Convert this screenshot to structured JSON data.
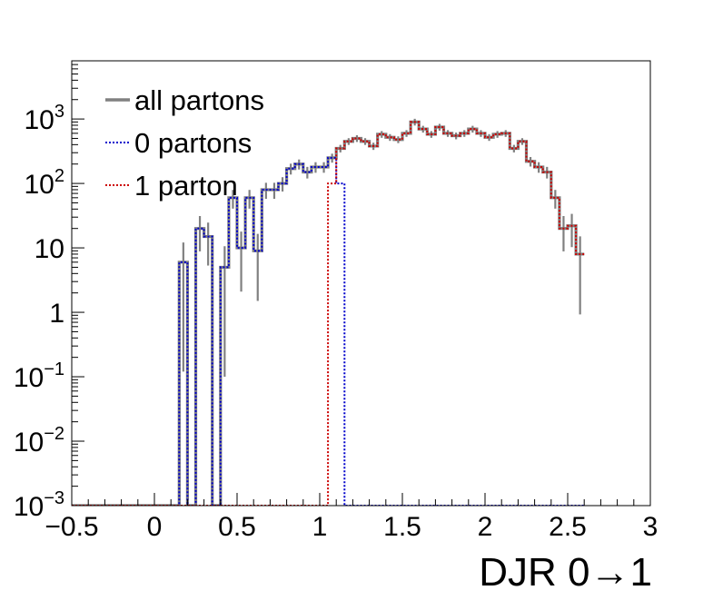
{
  "chart_data": {
    "type": "histogram",
    "xlabel": "DJR 0→1",
    "ylabel": "",
    "xlim": [
      -0.5,
      3
    ],
    "ylim": [
      0.001,
      8000
    ],
    "yscale": "log",
    "grid": false,
    "legend_position": "top-left",
    "x_ticks": [
      "−0.5",
      "0",
      "0.5",
      "1",
      "1.5",
      "2",
      "2.5",
      "3"
    ],
    "y_ticks": [
      {
        "value": 0.001,
        "base": "10",
        "exp": "−3"
      },
      {
        "value": 0.01,
        "base": "10",
        "exp": "−2"
      },
      {
        "value": 0.1,
        "base": "10",
        "exp": "−1"
      },
      {
        "value": 1,
        "base": "1",
        "exp": ""
      },
      {
        "value": 10,
        "base": "10",
        "exp": ""
      },
      {
        "value": 100,
        "base": "10",
        "exp": "2"
      },
      {
        "value": 1000,
        "base": "10",
        "exp": "3"
      }
    ],
    "bin_start": -0.5,
    "bin_width": 0.05,
    "series": [
      {
        "name": "all partons",
        "color": "#808080",
        "style": "solid",
        "values": [
          0,
          0,
          0,
          0,
          0,
          0,
          0,
          0,
          0,
          0,
          0,
          0,
          0,
          6,
          0,
          20,
          15,
          0,
          5,
          60,
          10,
          60,
          9,
          80,
          80,
          100,
          170,
          200,
          150,
          180,
          180,
          250,
          350,
          450,
          500,
          450,
          380,
          580,
          520,
          480,
          600,
          900,
          700,
          580,
          750,
          600,
          550,
          600,
          700,
          600,
          520,
          580,
          600,
          350,
          450,
          220,
          180,
          150,
          60,
          20,
          22,
          8
        ]
      },
      {
        "name": "0 partons",
        "color": "#0000cc",
        "style": "dotted",
        "values": [
          0,
          0,
          0,
          0,
          0,
          0,
          0,
          0,
          0,
          0,
          0,
          0,
          0,
          6,
          0,
          20,
          15,
          0,
          5,
          60,
          10,
          60,
          9,
          80,
          80,
          100,
          170,
          200,
          150,
          180,
          180,
          250,
          100,
          0,
          0,
          0,
          0,
          0,
          0,
          0,
          0,
          0,
          0,
          0,
          0,
          0,
          0,
          0,
          0,
          0,
          0,
          0,
          0,
          0,
          0,
          0,
          0,
          0,
          0,
          0,
          0,
          0
        ]
      },
      {
        "name": "1 parton",
        "color": "#cc0000",
        "style": "dotted",
        "values": [
          0,
          0,
          0,
          0,
          0,
          0,
          0,
          0,
          0,
          0,
          0,
          0,
          0,
          0,
          0,
          0,
          0,
          0,
          0,
          0,
          0,
          0,
          0,
          0,
          0,
          0,
          0,
          0,
          0,
          0,
          0,
          100,
          350,
          450,
          500,
          450,
          380,
          580,
          520,
          480,
          600,
          900,
          700,
          580,
          750,
          600,
          550,
          600,
          700,
          600,
          520,
          580,
          600,
          350,
          450,
          220,
          180,
          150,
          60,
          20,
          22,
          8
        ]
      }
    ],
    "error_bars_on": "all partons"
  }
}
